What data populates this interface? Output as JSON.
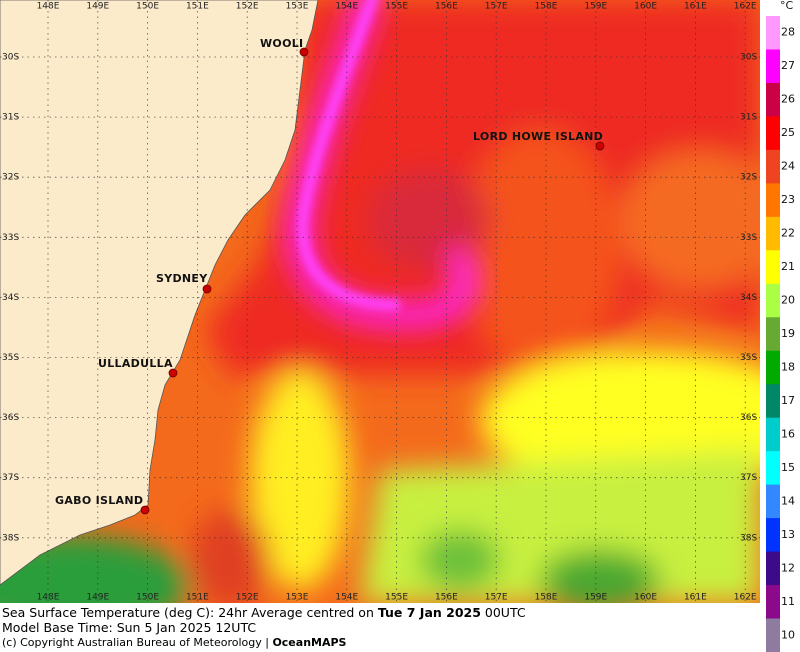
{
  "map": {
    "lon_labels": [
      "148E",
      "149E",
      "150E",
      "151E",
      "152E",
      "153E",
      "154E",
      "155E",
      "156E",
      "157E",
      "158E",
      "159E",
      "160E",
      "161E",
      "162E"
    ],
    "lat_labels": [
      "30S",
      "31S",
      "32S",
      "33S",
      "34S",
      "35S",
      "36S",
      "37S",
      "38S"
    ],
    "places": [
      {
        "name": "WOOLI"
      },
      {
        "name": "LORD HOWE ISLAND"
      },
      {
        "name": "SYDNEY"
      },
      {
        "name": "ULLADULLA"
      },
      {
        "name": "GABO ISLAND"
      }
    ]
  },
  "colorbar": {
    "unit": "°C",
    "labels": [
      28,
      27,
      26,
      25,
      24,
      23,
      22,
      21,
      20,
      19,
      18,
      17,
      16,
      15,
      14,
      13,
      12,
      11,
      10
    ],
    "colors": [
      "#ff99ff",
      "#ff00ff",
      "#cc0044",
      "#ff0000",
      "#ee4422",
      "#ff7700",
      "#ffbb00",
      "#ffff00",
      "#aaff44",
      "#66aa33",
      "#00aa00",
      "#008866",
      "#00cccc",
      "#00ffff",
      "#3388ff",
      "#0033ff",
      "#3d0a8a",
      "#8b0a8b",
      "#8f7aa0"
    ]
  },
  "caption": {
    "line1": {
      "text": "Sea Surface Temperature (deg C): 24hr Average centred on",
      "date": "Tue 7 Jan 2025",
      "time": "00UTC"
    },
    "line2": "Model Base Time: Sun 5 Jan 2025 12UTC",
    "line3": {
      "text": "(c) Copyright Australian Bureau of Meteorology |",
      "brand": "OceanMAPS"
    }
  }
}
